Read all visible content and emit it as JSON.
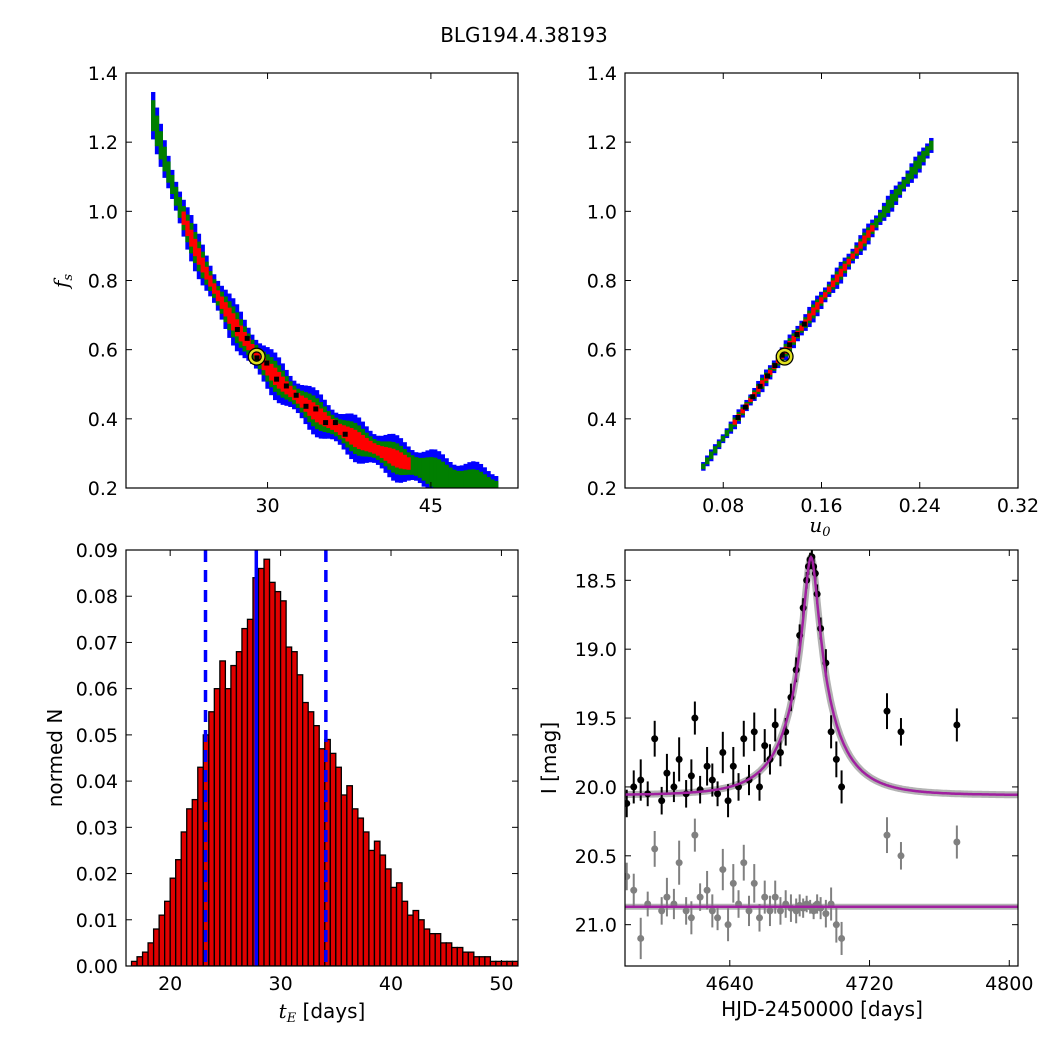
{
  "title": "BLG194.4.38193",
  "colors": {
    "blue_region": "#0000ff",
    "green_region": "#007f00",
    "red_region": "#ff0000",
    "hist_bar": "#e00000",
    "median_line": "#0000ff",
    "model_curve": "#a020a0",
    "data_primary": "#000000",
    "data_secondary": "#808080",
    "best_fit_marker": "#e0e020"
  },
  "chart_data": [
    {
      "id": "tE_fs",
      "type": "heatmap",
      "xlabel": "",
      "ylabel": "f_s",
      "ylabel_symbol": "f",
      "ylabel_sub": "s",
      "xlim": [
        17,
        53
      ],
      "ylim": [
        0.2,
        1.4
      ],
      "xticks": [
        "30",
        "45"
      ],
      "xtick_values": [
        30,
        45
      ],
      "yticks": [
        "0.2",
        "0.4",
        "0.6",
        "0.8",
        "1.0",
        "1.2",
        "1.4"
      ],
      "ytick_values": [
        0.2,
        0.4,
        0.6,
        0.8,
        1.0,
        1.2,
        1.4
      ],
      "relation": "fs = 0.577 * (29.0 / tE)^1.95",
      "x_range": [
        19.3,
        51.0
      ],
      "best_fit": {
        "x": 29.0,
        "y": 0.58
      }
    },
    {
      "id": "u0_fs",
      "type": "heatmap",
      "xlabel": "u_0",
      "xlabel_symbol": "u",
      "xlabel_sub": "0",
      "ylabel": "",
      "xlim": [
        0.0,
        0.32
      ],
      "ylim": [
        0.2,
        1.4
      ],
      "xticks": [
        "0.08",
        "0.16",
        "0.24",
        "0.32"
      ],
      "xtick_values": [
        0.08,
        0.16,
        0.24,
        0.32
      ],
      "yticks": [
        "0.2",
        "0.4",
        "0.6",
        "0.8",
        "1.0",
        "1.2",
        "1.4"
      ],
      "ytick_values": [
        0.2,
        0.4,
        0.6,
        0.8,
        1.0,
        1.2,
        1.4
      ],
      "relation": "fs = 0.27 + (u0 - 0.0635) * 5.0",
      "x_range": [
        0.062,
        0.249
      ],
      "best_fit": {
        "x": 0.13,
        "y": 0.58
      }
    },
    {
      "id": "tE_hist",
      "type": "bar",
      "xlabel": "t_E [days]",
      "xlabel_symbol": "t",
      "xlabel_sub": "E",
      "xlabel_rest": "[days]",
      "ylabel": "normed N",
      "xlim": [
        16,
        51.5
      ],
      "ylim": [
        0,
        0.09
      ],
      "xticks": [
        "20",
        "30",
        "40",
        "50"
      ],
      "xtick_values": [
        20,
        30,
        40,
        50
      ],
      "yticks": [
        "0.00",
        "0.01",
        "0.02",
        "0.03",
        "0.04",
        "0.05",
        "0.06",
        "0.07",
        "0.08",
        "0.09"
      ],
      "ytick_values": [
        0,
        0.01,
        0.02,
        0.03,
        0.04,
        0.05,
        0.06,
        0.07,
        0.08,
        0.09
      ],
      "bin_start": 16.5,
      "bin_width": 0.5,
      "values": [
        0.001,
        0.002,
        0.003,
        0.005,
        0.008,
        0.011,
        0.014,
        0.019,
        0.023,
        0.029,
        0.034,
        0.036,
        0.043,
        0.05,
        0.055,
        0.06,
        0.066,
        0.06,
        0.065,
        0.068,
        0.073,
        0.075,
        0.084,
        0.086,
        0.088,
        0.083,
        0.081,
        0.079,
        0.069,
        0.068,
        0.063,
        0.057,
        0.055,
        0.052,
        0.047,
        0.049,
        0.046,
        0.043,
        0.037,
        0.039,
        0.034,
        0.032,
        0.029,
        0.025,
        0.027,
        0.024,
        0.021,
        0.017,
        0.018,
        0.014,
        0.011,
        0.012,
        0.01,
        0.008,
        0.007,
        0.007,
        0.005,
        0.005,
        0.004,
        0.004,
        0.003,
        0.003,
        0.002,
        0.002,
        0.002,
        0.001,
        0.001,
        0.001,
        0.001,
        0.001
      ],
      "median": 27.8,
      "lower": 23.2,
      "upper": 34.1
    },
    {
      "id": "lightcurve",
      "type": "scatter",
      "xlabel": "HJD-2450000 [days]",
      "ylabel": "I [mag]",
      "xlim": [
        4580,
        4805
      ],
      "ylim": [
        21.3,
        18.28
      ],
      "xticks": [
        "4640",
        "4720",
        "4800"
      ],
      "xtick_values": [
        4640,
        4720,
        4800
      ],
      "yticks": [
        "18.5",
        "19.0",
        "19.5",
        "20.0",
        "20.5",
        "21.0"
      ],
      "ytick_values": [
        18.5,
        19.0,
        19.5,
        20.0,
        20.5,
        21.0
      ],
      "model": {
        "t0": 4686.5,
        "tE": 27.8,
        "u0": 0.13,
        "fs": 0.58,
        "I_base": 20.06
      },
      "residual_offset": 20.87,
      "series": [
        {
          "points": [
            [
              4581,
              20.12,
              0.1
            ],
            [
              4585,
              20.0,
              0.12
            ],
            [
              4589,
              19.95,
              0.15
            ],
            [
              4593,
              20.05,
              0.09
            ],
            [
              4597,
              19.65,
              0.13
            ],
            [
              4601,
              20.1,
              0.1
            ],
            [
              4604,
              19.9,
              0.14
            ],
            [
              4608,
              20.0,
              0.11
            ],
            [
              4611,
              19.8,
              0.16
            ],
            [
              4615,
              20.05,
              0.1
            ],
            [
              4618,
              19.92,
              0.12
            ],
            [
              4620,
              19.5,
              0.12
            ],
            [
              4623,
              20.02,
              0.1
            ],
            [
              4627,
              19.85,
              0.14
            ],
            [
              4630,
              19.95,
              0.12
            ],
            [
              4633,
              20.05,
              0.09
            ],
            [
              4636,
              19.75,
              0.15
            ],
            [
              4639,
              20.1,
              0.12
            ],
            [
              4642,
              19.85,
              0.14
            ],
            [
              4645,
              20.0,
              0.1
            ],
            [
              4648,
              19.65,
              0.13
            ],
            [
              4651,
              19.95,
              0.11
            ],
            [
              4654,
              19.6,
              0.14
            ],
            [
              4657,
              20.0,
              0.1
            ],
            [
              4660,
              19.7,
              0.12
            ],
            [
              4663,
              19.8,
              0.11
            ],
            [
              4666,
              19.55,
              0.12
            ],
            [
              4669,
              19.75,
              0.1
            ],
            [
              4672,
              19.6,
              0.1
            ],
            [
              4675,
              19.35,
              0.1
            ],
            [
              4678,
              19.15,
              0.09
            ],
            [
              4680,
              18.9,
              0.08
            ],
            [
              4682,
              18.7,
              0.07
            ],
            [
              4684,
              18.5,
              0.06
            ],
            [
              4685,
              18.4,
              0.06
            ],
            [
              4686,
              18.35,
              0.05
            ],
            [
              4687,
              18.33,
              0.05
            ],
            [
              4688,
              18.4,
              0.06
            ],
            [
              4689,
              18.45,
              0.06
            ],
            [
              4690,
              18.6,
              0.07
            ],
            [
              4692,
              18.85,
              0.08
            ],
            [
              4695,
              19.1,
              0.1
            ],
            [
              4698,
              19.6,
              0.12
            ],
            [
              4701,
              19.8,
              0.13
            ],
            [
              4704,
              20.0,
              0.12
            ],
            [
              4730,
              19.45,
              0.13
            ],
            [
              4738,
              19.6,
              0.1
            ],
            [
              4770,
              19.55,
              0.12
            ]
          ]
        },
        {
          "points": [
            [
              4581,
              20.65,
              0.1
            ],
            [
              4585,
              20.75,
              0.12
            ],
            [
              4589,
              21.1,
              0.15
            ],
            [
              4593,
              20.85,
              0.09
            ],
            [
              4597,
              20.45,
              0.13
            ],
            [
              4601,
              20.9,
              0.1
            ],
            [
              4604,
              20.8,
              0.14
            ],
            [
              4608,
              20.85,
              0.11
            ],
            [
              4611,
              20.55,
              0.16
            ],
            [
              4615,
              20.9,
              0.1
            ],
            [
              4618,
              20.95,
              0.12
            ],
            [
              4620,
              20.35,
              0.12
            ],
            [
              4623,
              20.8,
              0.1
            ],
            [
              4627,
              20.75,
              0.14
            ],
            [
              4630,
              20.9,
              0.12
            ],
            [
              4633,
              20.95,
              0.09
            ],
            [
              4636,
              20.6,
              0.15
            ],
            [
              4639,
              21.0,
              0.12
            ],
            [
              4642,
              20.7,
              0.14
            ],
            [
              4645,
              20.85,
              0.1
            ],
            [
              4648,
              20.55,
              0.13
            ],
            [
              4651,
              20.9,
              0.11
            ],
            [
              4654,
              20.7,
              0.14
            ],
            [
              4657,
              20.95,
              0.1
            ],
            [
              4660,
              20.8,
              0.12
            ],
            [
              4663,
              20.9,
              0.11
            ],
            [
              4666,
              20.8,
              0.12
            ],
            [
              4669,
              20.9,
              0.1
            ],
            [
              4672,
              20.85,
              0.1
            ],
            [
              4675,
              20.88,
              0.1
            ],
            [
              4678,
              20.9,
              0.09
            ],
            [
              4680,
              20.86,
              0.08
            ],
            [
              4682,
              20.88,
              0.07
            ],
            [
              4684,
              20.85,
              0.06
            ],
            [
              4686,
              20.87,
              0.05
            ],
            [
              4688,
              20.9,
              0.06
            ],
            [
              4690,
              20.85,
              0.07
            ],
            [
              4692,
              20.88,
              0.08
            ],
            [
              4695,
              20.92,
              0.1
            ],
            [
              4698,
              20.85,
              0.12
            ],
            [
              4701,
              21.0,
              0.13
            ],
            [
              4704,
              21.1,
              0.12
            ],
            [
              4730,
              20.35,
              0.13
            ],
            [
              4738,
              20.5,
              0.1
            ],
            [
              4770,
              20.4,
              0.12
            ]
          ]
        }
      ]
    }
  ]
}
